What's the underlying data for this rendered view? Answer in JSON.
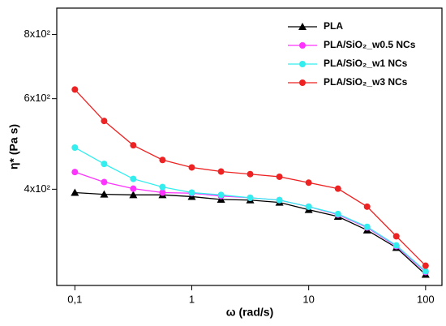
{
  "chart_data": {
    "type": "line",
    "xlabel": "ω (rad/s)",
    "ylabel": "η* (Pa s)",
    "x": [
      0.1,
      0.178,
      0.316,
      0.562,
      1,
      1.78,
      3.16,
      5.62,
      10,
      17.8,
      31.6,
      56.2,
      100
    ],
    "series": [
      {
        "name": "PLA",
        "color": "#000000",
        "marker": "triangle",
        "values": [
          394,
          391,
          390,
          390,
          387,
          382,
          381,
          377,
          365,
          354,
          333,
          308,
          273
        ]
      },
      {
        "name": "PLA/SiO₂_w0.5 NCs",
        "color": "#ff33ff",
        "marker": "circle",
        "values": [
          432,
          413,
          401,
          394,
          393,
          388,
          385,
          381,
          370,
          357,
          337,
          310,
          276
        ]
      },
      {
        "name": "PLA/SiO₂_w1 NCs",
        "color": "#33eeee",
        "marker": "circle",
        "values": [
          482,
          448,
          419,
          404,
          394,
          390,
          385,
          381,
          370,
          358,
          338,
          311,
          277
        ]
      },
      {
        "name": "PLA/SiO₂_w3 NCs",
        "color": "#ee2222",
        "marker": "circle",
        "values": [
          625,
          543,
          487,
          456,
          441,
          433,
          428,
          423,
          412,
          401,
          370,
          324,
          284
        ]
      }
    ],
    "xscale": "log",
    "yscale": "log",
    "xlim": [
      0.07,
      138
    ],
    "ylim": [
      260,
      900
    ],
    "xticks": [
      {
        "value": 0.1,
        "label": "0,1"
      },
      1,
      10,
      100
    ],
    "yticks": [
      {
        "value": 400,
        "label": "4x10²"
      },
      {
        "value": 600,
        "label": "6x10²"
      },
      {
        "value": 800,
        "label": "8x10²"
      }
    ],
    "grid": false,
    "legend": "upper right"
  }
}
